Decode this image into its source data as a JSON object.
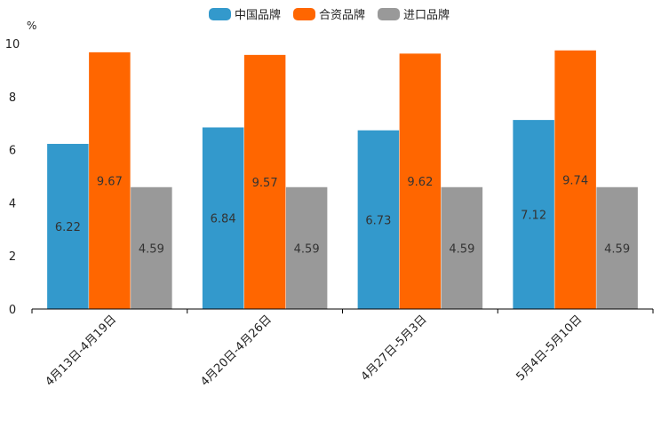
{
  "chart_data": {
    "type": "bar",
    "title": "",
    "xlabel": "",
    "ylabel": "%",
    "ylim": [
      0,
      10
    ],
    "yticks": [
      0,
      2,
      4,
      6,
      8,
      10
    ],
    "grid": false,
    "legend_position": "top-center",
    "categories": [
      "4月13日-4月19日",
      "4月20日-4月26日",
      "4月27日-5月3日",
      "5月4日-5月10日"
    ],
    "series": [
      {
        "name": "中国品牌",
        "color": "#3399cc",
        "values": [
          6.22,
          6.84,
          6.73,
          7.12
        ]
      },
      {
        "name": "合资品牌",
        "color": "#ff6600",
        "values": [
          9.67,
          9.57,
          9.62,
          9.74
        ]
      },
      {
        "name": "进口品牌",
        "color": "#999999",
        "values": [
          4.59,
          4.59,
          4.59,
          4.59
        ]
      }
    ]
  }
}
